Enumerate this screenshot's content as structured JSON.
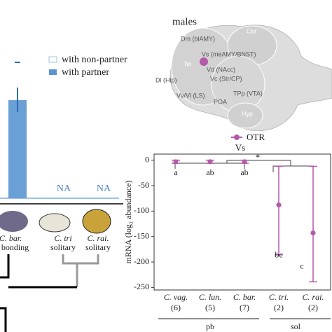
{
  "left_panel": {
    "legend": [
      "with non-partner",
      "with partner"
    ],
    "na": [
      "NA",
      "NA"
    ],
    "species": [
      {
        "name": "C. bar.",
        "behavior": "r bonding"
      },
      {
        "name": "C. tri",
        "behavior": "solitary"
      },
      {
        "name": "C. rai.",
        "behavior": "solitary"
      }
    ]
  },
  "brain": {
    "title": "males",
    "regions": [
      "Cer",
      "Tel",
      "Dm (blAMY)",
      "Vs (meAMY/BNST)",
      "Vd (NAcc)",
      "Dl (Hip)",
      "Vc (Str/CP)",
      "Vv/Vl (LS)",
      "TPp (VTA)",
      "POA",
      "Hyp"
    ]
  },
  "chart_data": {
    "type": "errorbar",
    "title": "Vs",
    "y_label": "mRNA (log₂ abundance)",
    "categories": [
      "C. vag.",
      "C. lun.",
      "C. bar.",
      "C. tri.",
      "C. rai."
    ],
    "counts": [
      "(6)",
      "(5)",
      "(7)",
      "(2)",
      "(2)"
    ],
    "letters": [
      "a",
      "ab",
      "ab",
      "bc",
      "c"
    ],
    "groups": [
      "pb",
      "sol"
    ],
    "significance": "*",
    "series": [
      {
        "name": "OTR",
        "color": "#b35aa8",
        "values": [
          -3,
          -3,
          -3,
          -88,
          -143
        ],
        "lower": [
          -6,
          -6,
          -6,
          -186,
          -239
        ],
        "upper": [
          0,
          0,
          0,
          -12,
          -12
        ]
      }
    ],
    "ylim": [
      -255,
      12
    ],
    "yticks": [
      0,
      -50,
      -100,
      -150,
      -200,
      -250
    ]
  }
}
